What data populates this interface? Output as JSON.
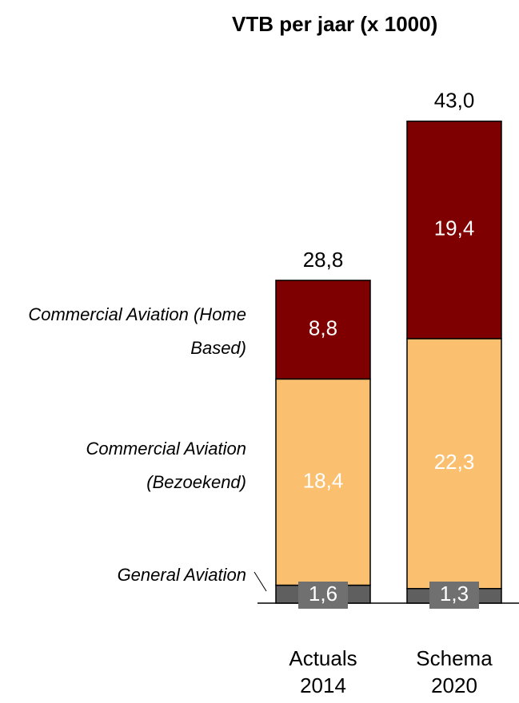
{
  "chart_data": {
    "type": "stacked-bar",
    "title": "VTB per jaar (x 1000)",
    "categories": [
      [
        "Actuals",
        "2014"
      ],
      [
        "Schema",
        "2020"
      ]
    ],
    "series": [
      {
        "name": "General Aviation",
        "color": "#5f5f5f",
        "values": [
          1.6,
          1.3
        ],
        "value_labels": [
          "1,6",
          "1,3"
        ]
      },
      {
        "name": "Commercial Aviation (Bezoekend)",
        "color": "#fac070",
        "values": [
          18.4,
          22.3
        ],
        "value_labels": [
          "18,4",
          "22,3"
        ]
      },
      {
        "name": "Commercial Aviation (Home Based)",
        "color": "#7f0000",
        "values": [
          8.8,
          19.4
        ],
        "value_labels": [
          "8,8",
          "19,4"
        ]
      }
    ],
    "totals": [
      28.8,
      43.0
    ],
    "total_labels": [
      "28,8",
      "43,0"
    ]
  }
}
